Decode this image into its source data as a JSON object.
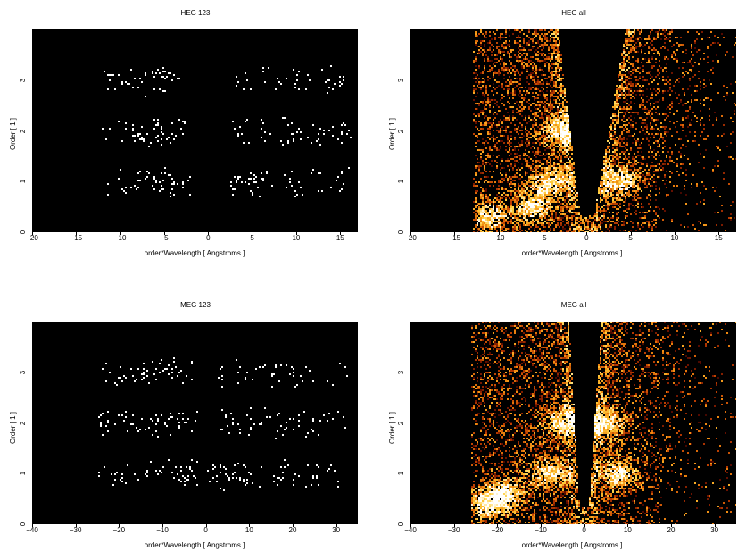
{
  "chart_data": [
    {
      "type": "heatmap",
      "title": "HEG 123",
      "xlabel": "order*Wavelength [ Angstroms ]",
      "ylabel": "Order [ 1 ]",
      "xlim": [
        -20,
        17
      ],
      "ylim": [
        0,
        4
      ],
      "xticks": [
        -20,
        -15,
        -10,
        -5,
        0,
        5,
        10,
        15
      ],
      "yticks": [
        0,
        1,
        2,
        3
      ],
      "colormap": [
        "#000000",
        "#ffffff"
      ],
      "bands": [
        {
          "order": 1,
          "segments": [
            [
              -12.5,
              -2
            ],
            [
              2.5,
              16
            ]
          ]
        },
        {
          "order": 2,
          "segments": [
            [
              -12.5,
              -2
            ],
            [
              2,
              16.5
            ]
          ]
        },
        {
          "order": 3,
          "segments": [
            [
              -12,
              -3
            ],
            [
              3,
              15.5
            ]
          ]
        }
      ],
      "hotspots": [
        [
          -4,
          1
        ],
        [
          4,
          1
        ],
        [
          -6,
          2
        ],
        [
          -5.5,
          3.2
        ]
      ]
    },
    {
      "type": "heatmap",
      "title": "HEG all",
      "xlabel": "order*Wavelength [ Angstroms ]",
      "ylabel": "Order [ 1 ]",
      "xlim": [
        -20,
        17
      ],
      "ylim": [
        0,
        4
      ],
      "xticks": [
        -20,
        -15,
        -10,
        -5,
        0,
        5,
        10,
        15
      ],
      "yticks": [
        0,
        1,
        2,
        3
      ],
      "colormap": [
        "#000000",
        "#5a0a00",
        "#b83a00",
        "#f08a10",
        "#ffd040",
        "#ffffff"
      ],
      "region_xlim": [
        -13,
        17
      ],
      "wedge": {
        "x_at_y0": [
          -0.5,
          0.5
        ],
        "x_at_ytop": [
          -3.2,
          4.5
        ]
      },
      "hotspots": [
        [
          -11,
          0.3
        ],
        [
          -4,
          1
        ],
        [
          4,
          1
        ],
        [
          -3,
          2
        ],
        [
          -6,
          0.5
        ]
      ]
    },
    {
      "type": "heatmap",
      "title": "MEG 123",
      "xlabel": "order*Wavelength [ Angstroms ]",
      "ylabel": "Order [ 1 ]",
      "xlim": [
        -40,
        35
      ],
      "ylim": [
        0,
        4
      ],
      "xticks": [
        -40,
        -30,
        -20,
        -10,
        0,
        10,
        20,
        30
      ],
      "yticks": [
        0,
        1,
        2,
        3
      ],
      "colormap": [
        "#000000",
        "#ffffff"
      ],
      "bands": [
        {
          "order": 1,
          "segments": [
            [
              -26,
              -2
            ],
            [
              0,
              31
            ]
          ]
        },
        {
          "order": 2,
          "segments": [
            [
              -25,
              -2
            ],
            [
              3,
              32
            ]
          ]
        },
        {
          "order": 3,
          "segments": [
            [
              -24,
              -3
            ],
            [
              2,
              33
            ]
          ]
        }
      ],
      "hotspots": [
        [
          -5,
          1
        ],
        [
          5,
          1
        ],
        [
          -8,
          2
        ],
        [
          -9,
          3.3
        ]
      ]
    },
    {
      "type": "heatmap",
      "title": "MEG all",
      "xlabel": "order*Wavelength [ Angstroms ]",
      "ylabel": "Order [ 1 ]",
      "xlim": [
        -40,
        35
      ],
      "ylim": [
        0,
        4
      ],
      "xticks": [
        -40,
        -30,
        -20,
        -10,
        0,
        10,
        20,
        30
      ],
      "yticks": [
        0,
        1,
        2,
        3
      ],
      "colormap": [
        "#000000",
        "#5a0a00",
        "#b83a00",
        "#f08a10",
        "#ffd040",
        "#ffffff"
      ],
      "region_xlim": [
        -26,
        35
      ],
      "wedge": {
        "x_at_y0": [
          -0.8,
          0.8
        ],
        "x_at_ytop": [
          -3.5,
          4
        ]
      },
      "hotspots": [
        [
          -22,
          0.4
        ],
        [
          -8,
          1
        ],
        [
          8,
          1
        ],
        [
          -5,
          2
        ],
        [
          5,
          2
        ],
        [
          -18,
          0.6
        ]
      ]
    }
  ]
}
